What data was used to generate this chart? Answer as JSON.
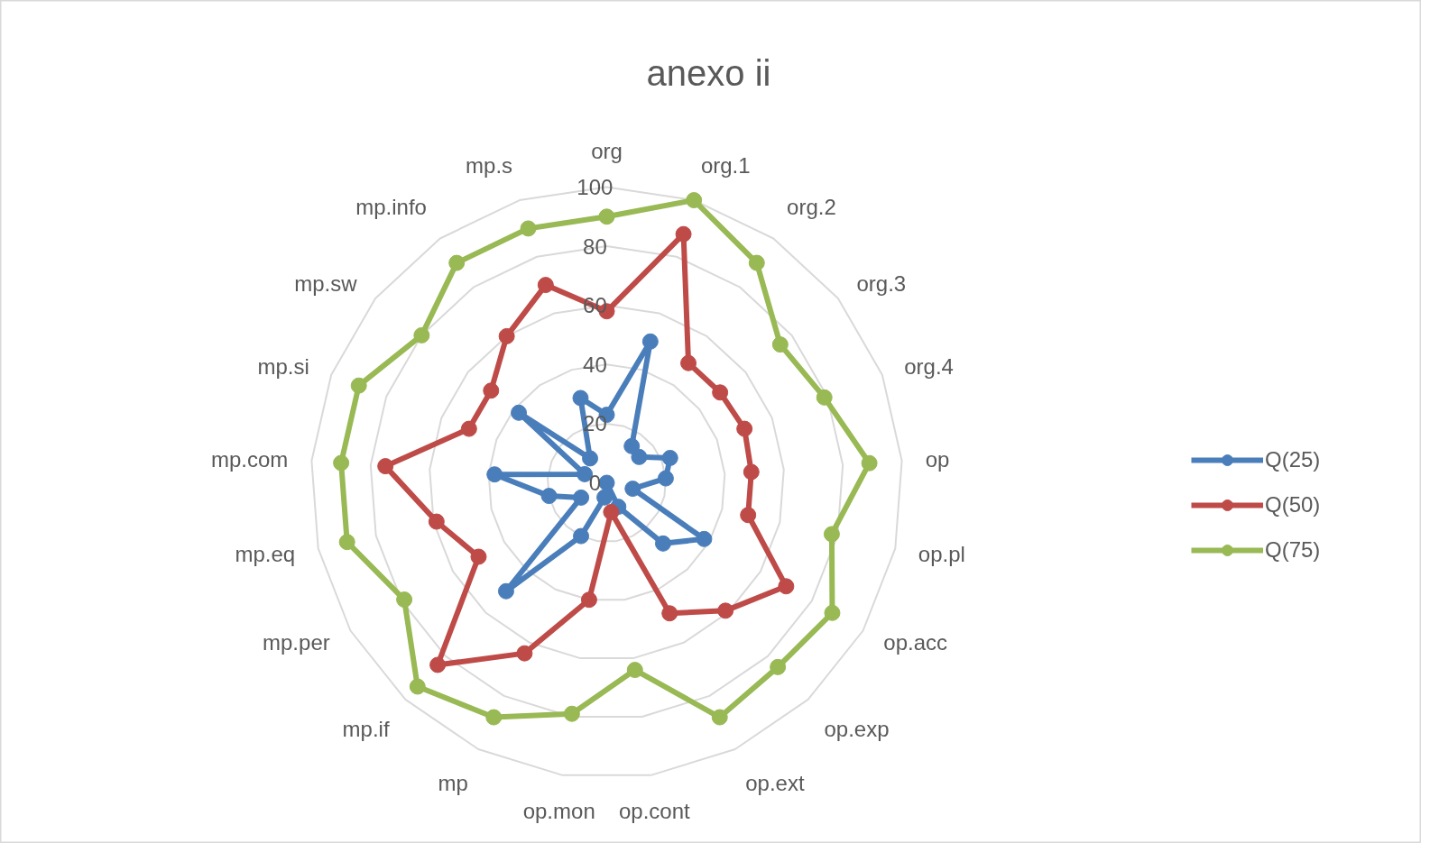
{
  "chart_data": {
    "type": "radar",
    "title": "anexo ii",
    "categories": [
      "org",
      "org.1",
      "org.2",
      "org.3",
      "org.4",
      "op",
      "op.pl",
      "op.acc",
      "op.exp",
      "op.ext",
      "op.cont",
      "op.mon",
      "mp",
      "mp.if",
      "mp.per",
      "mp.eq",
      "mp.com",
      "mp.si",
      "mp.sw",
      "mp.info",
      "mp.s"
    ],
    "series": [
      {
        "name": "Q(25)",
        "color": "#4a7ebb",
        "values": [
          23,
          50,
          15,
          14,
          23,
          20,
          9,
          38,
          28,
          9,
          0,
          5,
          20,
          50,
          10,
          20,
          38,
          8,
          38,
          10,
          30
        ]
      },
      {
        "name": "Q(50)",
        "color": "#be4b48",
        "values": [
          58,
          88,
          49,
          49,
          50,
          49,
          49,
          70,
          59,
          49,
          10,
          40,
          64,
          84,
          50,
          59,
          75,
          50,
          50,
          60,
          70
        ]
      },
      {
        "name": "Q(75)",
        "color": "#98b954",
        "values": [
          90,
          100,
          90,
          75,
          79,
          89,
          78,
          88,
          85,
          88,
          64,
          79,
          88,
          94,
          79,
          90,
          90,
          90,
          80,
          90,
          90
        ]
      }
    ],
    "ylim": [
      0,
      100
    ],
    "yticks": [
      0,
      20,
      40,
      60,
      80,
      100
    ],
    "grid": true,
    "legend": "right",
    "marker": "circle"
  }
}
